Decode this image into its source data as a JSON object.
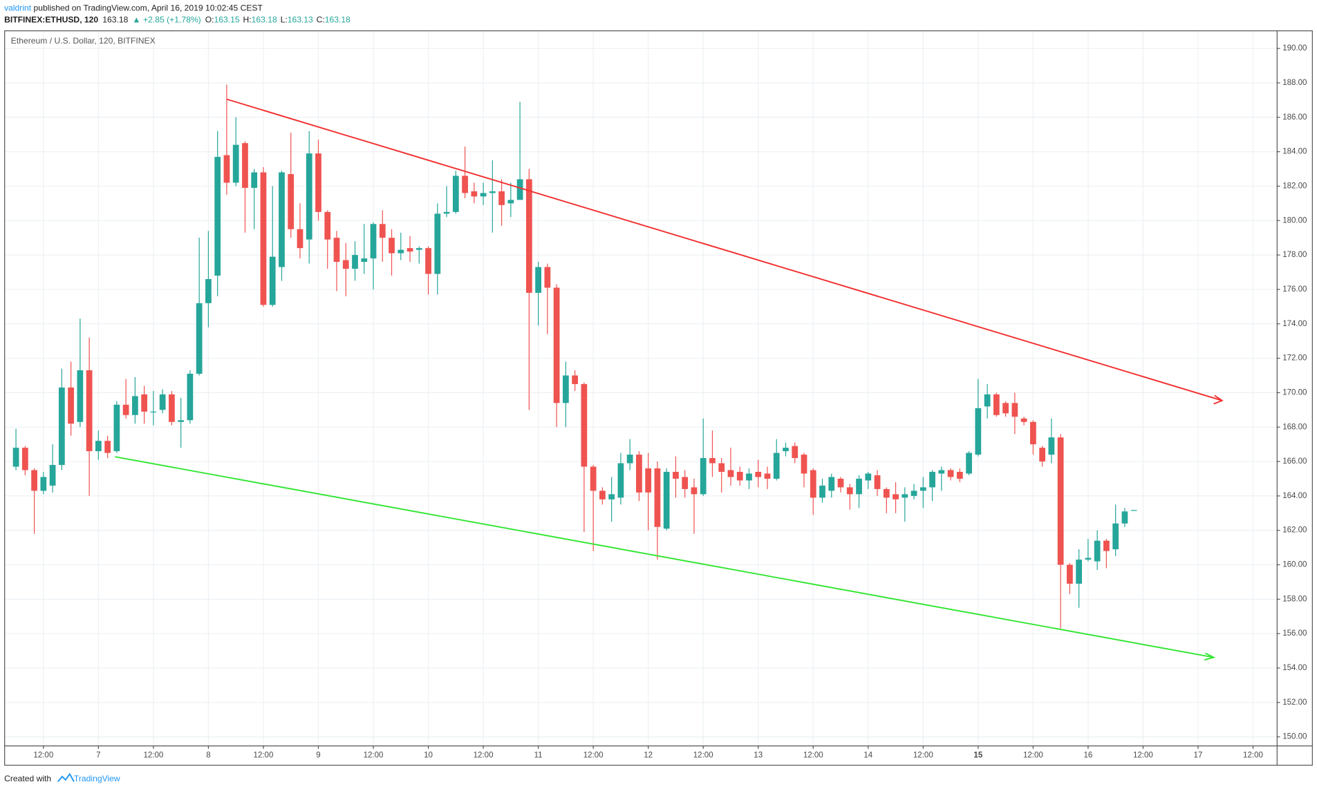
{
  "header": {
    "author": "valdrint",
    "published": " published on TradingView.com, April 16, 2019 10:02:45 CEST",
    "symbol": "BITFINEX:ETHUSD, 120",
    "last": "163.18",
    "change": "+2.85 (+1.78%)",
    "ohlc": [
      {
        "key": "O:",
        "value": "163.15"
      },
      {
        "key": "H:",
        "value": "163.18"
      },
      {
        "key": "L:",
        "value": "163.13"
      },
      {
        "key": "C:",
        "value": "163.18"
      }
    ]
  },
  "footer": {
    "created": "Created with",
    "brand": "TradingView"
  },
  "chart_data": {
    "type": "candlestick",
    "title": "Ethereum / U.S. Dollar, 120, BITFINEX",
    "up_color": "#26a69a",
    "down_color": "#ef5350",
    "grid": true,
    "xticks": [
      "12:00",
      "7",
      "12:00",
      "8",
      "12:00",
      "9",
      "12:00",
      "10",
      "12:00",
      "11",
      "12:00",
      "12",
      "12:00",
      "13",
      "12:00",
      "14",
      "12:00",
      "15",
      "12:00",
      "16",
      "12:00",
      "17",
      "12:00"
    ],
    "ylim": [
      149.5,
      191
    ],
    "yticks": [
      {
        "value": 150,
        "label": "150.00"
      },
      {
        "value": 152,
        "label": "152.00"
      },
      {
        "value": 154,
        "label": "154.00"
      },
      {
        "value": 156,
        "label": "156.00"
      },
      {
        "value": 158,
        "label": "158.00"
      },
      {
        "value": 160,
        "label": "160.00"
      },
      {
        "value": 162,
        "label": "162.00"
      },
      {
        "value": 164,
        "label": "164.00"
      },
      {
        "value": 166,
        "label": "166.00"
      },
      {
        "value": 168,
        "label": "168.00"
      },
      {
        "value": 170,
        "label": "170.00"
      },
      {
        "value": 172,
        "label": "172.00"
      },
      {
        "value": 174,
        "label": "174.00"
      },
      {
        "value": 176,
        "label": "176.00"
      },
      {
        "value": 178,
        "label": "178.00"
      },
      {
        "value": 180,
        "label": "180.00"
      },
      {
        "value": 182,
        "label": "182.00"
      },
      {
        "value": 184,
        "label": "184.00"
      },
      {
        "value": 186,
        "label": "186.00"
      },
      {
        "value": 188,
        "label": "188.00"
      },
      {
        "value": 190,
        "label": "190.00"
      }
    ],
    "open": [
      165.7,
      166.8,
      165.5,
      164.3,
      164.6,
      165.8,
      170.3,
      168.3,
      171.3,
      166.6,
      167.2,
      166.6,
      169.3,
      168.7,
      169.9,
      168.9,
      169.0,
      169.9,
      168.3,
      168.4,
      171.1,
      175.2,
      176.8,
      183.8,
      182.2,
      184.5,
      181.9,
      182.8,
      175.1,
      177.3,
      182.7,
      179.5,
      178.9,
      183.9,
      180.5,
      179.0,
      177.7,
      177.2,
      177.6,
      177.8,
      179.8,
      179.0,
      178.1,
      178.4,
      178.3,
      178.4,
      176.9,
      180.4,
      180.5,
      182.6,
      181.7,
      181.4,
      181.6,
      181.7,
      181.0,
      181.2,
      182.4,
      175.8,
      177.3,
      176.1,
      169.4,
      171.0,
      170.5,
      165.7,
      164.3,
      163.8,
      163.9,
      165.9,
      166.4,
      165.6,
      165.6,
      162.1,
      165.4,
      165.1,
      164.5,
      164.1,
      166.2,
      165.9,
      165.5,
      165.4,
      164.9,
      165.4,
      165.3,
      165.0,
      166.6,
      166.9,
      166.4,
      165.5,
      163.9,
      164.3,
      165.0,
      164.5,
      164.1,
      164.9,
      165.2,
      164.4,
      164.1,
      163.9,
      164.0,
      164.3,
      164.5,
      165.3,
      165.5,
      165.4,
      165.3,
      166.4,
      169.2,
      169.9,
      169.4,
      169.4,
      168.5,
      168.3,
      166.8,
      166.4,
      167.4,
      160.0,
      158.9,
      160.3,
      160.2,
      161.4,
      160.9,
      162.4,
      163.15
    ],
    "high": [
      167.9,
      166.9,
      165.6,
      165.4,
      167.0,
      171.4,
      171.8,
      174.3,
      173.2,
      167.8,
      167.5,
      169.5,
      170.8,
      170.9,
      170.4,
      170.1,
      170.2,
      170.1,
      169.7,
      171.3,
      179.0,
      179.4,
      185.2,
      187.9,
      186.0,
      184.6,
      183.0,
      183.1,
      182.0,
      182.9,
      185.1,
      181.0,
      185.2,
      184.7,
      180.6,
      179.4,
      178.7,
      178.8,
      179.8,
      179.9,
      180.6,
      179.5,
      179.3,
      179.1,
      178.5,
      178.5,
      181.0,
      182.0,
      182.9,
      184.3,
      182.2,
      182.2,
      183.5,
      182.4,
      182.2,
      186.9,
      183.0,
      177.6,
      177.5,
      176.3,
      171.8,
      171.3,
      170.6,
      165.8,
      164.5,
      165.1,
      166.5,
      167.3,
      166.6,
      166.5,
      166.0,
      165.6,
      166.3,
      165.5,
      165.0,
      168.5,
      167.8,
      166.2,
      166.8,
      165.7,
      165.6,
      166.1,
      165.7,
      167.3,
      167.1,
      167.1,
      166.5,
      165.6,
      165.0,
      165.3,
      165.1,
      164.7,
      165.2,
      165.4,
      165.5,
      164.5,
      164.8,
      164.5,
      164.7,
      165.1,
      165.5,
      165.7,
      165.6,
      165.6,
      166.6,
      170.8,
      170.5,
      170.0,
      169.5,
      170.0,
      168.6,
      168.4,
      166.9,
      168.5,
      167.6,
      160.1,
      160.9,
      161.5,
      162.0,
      161.5,
      163.5,
      163.3,
      163.18
    ],
    "low": [
      165.5,
      165.2,
      161.8,
      164.1,
      164.2,
      165.5,
      167.5,
      168.0,
      164.0,
      166.1,
      166.2,
      166.5,
      168.5,
      168.2,
      168.2,
      168.1,
      168.8,
      168.1,
      166.8,
      168.2,
      171.0,
      173.8,
      175.6,
      181.5,
      182.0,
      179.3,
      179.5,
      175.0,
      175.0,
      176.5,
      179.0,
      177.8,
      177.5,
      180.0,
      177.2,
      175.9,
      175.6,
      176.5,
      176.9,
      176.0,
      177.6,
      176.8,
      177.7,
      177.6,
      177.5,
      175.7,
      175.7,
      180.2,
      180.4,
      181.3,
      181.0,
      180.9,
      179.3,
      179.7,
      180.2,
      181.2,
      169.0,
      173.9,
      173.4,
      168.0,
      168.0,
      170.1,
      161.9,
      160.8,
      163.5,
      162.5,
      163.5,
      165.5,
      163.7,
      162.0,
      160.3,
      162.0,
      163.9,
      163.9,
      161.8,
      164.0,
      165.1,
      164.2,
      164.6,
      164.6,
      164.4,
      164.5,
      164.4,
      164.9,
      166.3,
      165.9,
      164.5,
      162.9,
      163.6,
      163.9,
      164.2,
      163.2,
      163.3,
      164.4,
      164.0,
      163.0,
      163.0,
      162.5,
      163.8,
      163.3,
      163.7,
      164.3,
      164.9,
      164.8,
      165.2,
      166.3,
      168.5,
      168.6,
      168.6,
      167.6,
      168.1,
      166.4,
      165.7,
      165.9,
      156.3,
      158.3,
      157.5,
      160.2,
      159.7,
      159.8,
      160.5,
      162.2,
      163.13
    ],
    "close": [
      166.8,
      165.5,
      164.3,
      165.1,
      165.8,
      170.3,
      168.2,
      171.3,
      166.6,
      167.2,
      166.5,
      169.3,
      168.7,
      169.8,
      168.9,
      168.9,
      169.9,
      168.3,
      168.4,
      171.1,
      175.2,
      176.6,
      183.7,
      182.2,
      184.4,
      181.9,
      182.8,
      175.1,
      177.9,
      182.8,
      179.5,
      178.4,
      183.9,
      180.5,
      178.9,
      177.6,
      177.2,
      178.0,
      177.8,
      179.8,
      179.0,
      178.1,
      178.3,
      178.2,
      178.4,
      176.9,
      180.4,
      180.5,
      182.6,
      181.6,
      181.4,
      181.6,
      181.7,
      180.9,
      181.2,
      182.4,
      175.8,
      177.3,
      176.1,
      169.4,
      171.0,
      170.5,
      165.7,
      164.3,
      163.8,
      164.1,
      165.9,
      166.4,
      164.2,
      164.2,
      162.2,
      165.4,
      165.0,
      164.4,
      164.1,
      166.2,
      165.9,
      165.4,
      165.1,
      164.9,
      165.3,
      165.1,
      165.0,
      166.5,
      166.8,
      166.2,
      165.3,
      163.9,
      164.6,
      165.1,
      164.5,
      164.1,
      165.0,
      165.3,
      164.4,
      163.9,
      163.8,
      164.1,
      164.3,
      164.5,
      165.4,
      165.5,
      165.1,
      165.0,
      166.5,
      169.1,
      169.9,
      168.7,
      168.8,
      168.6,
      168.3,
      167.0,
      166.0,
      167.4,
      160.0,
      158.9,
      160.3,
      160.4,
      161.4,
      160.8,
      162.4,
      163.1,
      163.18
    ]
  }
}
